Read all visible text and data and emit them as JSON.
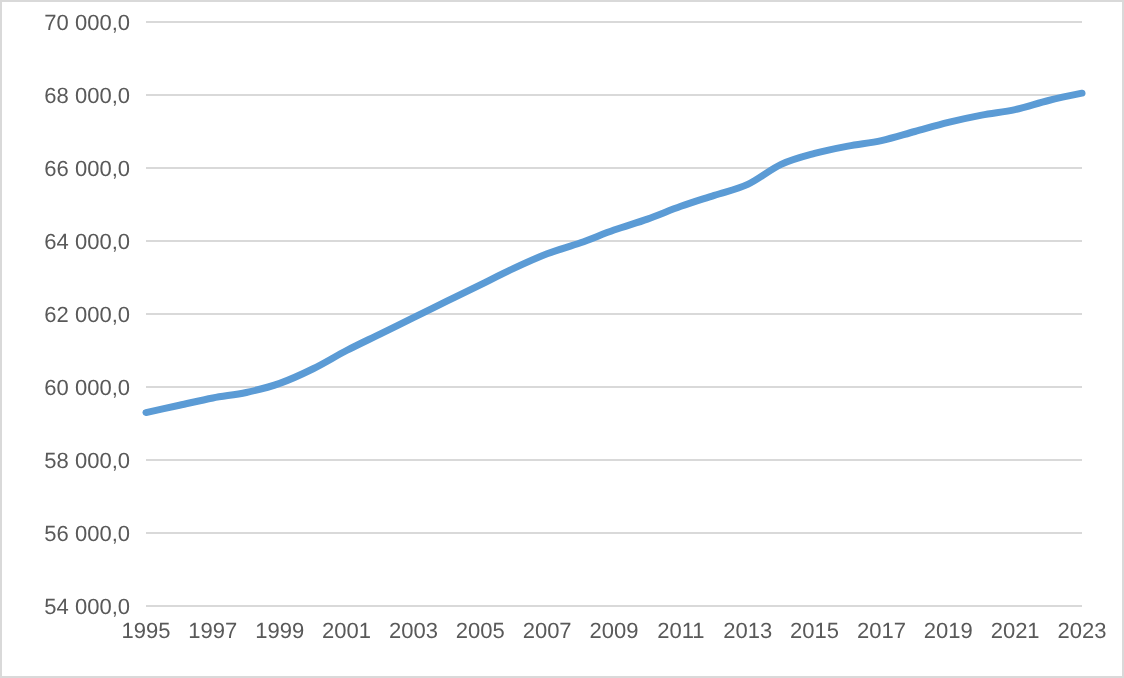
{
  "chart_data": {
    "type": "line",
    "categories": [
      "1995",
      null,
      "1997",
      null,
      "1999",
      null,
      "2001",
      null,
      "2003",
      null,
      "2005",
      null,
      "2007",
      null,
      "2009",
      null,
      "2011",
      null,
      "2013",
      null,
      "2015",
      null,
      "2017",
      null,
      "2019",
      null,
      "2021",
      null,
      "2023"
    ],
    "series": [
      {
        "color": "#5b9bd5",
        "values": [
          59300,
          59500,
          59700,
          59850,
          60100,
          60500,
          61000,
          61450,
          61900,
          62350,
          62800,
          63250,
          63650,
          63950,
          64300,
          64600,
          64950,
          65250,
          65550,
          66100,
          66400,
          66600,
          66750,
          67000,
          67250,
          67450,
          67600,
          67850,
          68050
        ]
      }
    ],
    "ylim": [
      54000,
      70000
    ],
    "yticks": [
      {
        "value": 54000,
        "label": "54 000,0"
      },
      {
        "value": 56000,
        "label": "56 000,0"
      },
      {
        "value": 58000,
        "label": "58 000,0"
      },
      {
        "value": 60000,
        "label": "60 000,0"
      },
      {
        "value": 62000,
        "label": "62 000,0"
      },
      {
        "value": 64000,
        "label": "64 000,0"
      },
      {
        "value": 66000,
        "label": "66 000,0"
      },
      {
        "value": 68000,
        "label": "68 000,0"
      },
      {
        "value": 70000,
        "label": "70 000,0"
      }
    ],
    "grid": "y",
    "marker": "none",
    "line_style": "solid",
    "legend": false
  }
}
